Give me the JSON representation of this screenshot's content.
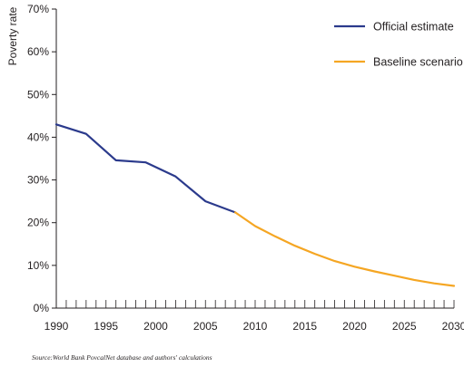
{
  "chart_data": {
    "type": "line",
    "ylabel": "Poverty rate",
    "xlabel": "",
    "xlim": [
      1990,
      2030
    ],
    "ylim": [
      0,
      70
    ],
    "x_ticks": [
      1990,
      1995,
      2000,
      2005,
      2010,
      2015,
      2020,
      2025,
      2030
    ],
    "y_ticks": [
      0,
      10,
      20,
      30,
      40,
      50,
      60,
      70
    ],
    "y_tick_labels": [
      "0%",
      "10%",
      "20%",
      "30%",
      "40%",
      "50%",
      "60%",
      "70%"
    ],
    "grid": false,
    "legend_position": "top-right",
    "series": [
      {
        "name": "Official estimate",
        "color": "#2b3a8c",
        "x": [
          1990,
          1993,
          1996,
          1999,
          2002,
          2005,
          2008
        ],
        "y": [
          43,
          40.8,
          34.6,
          34.1,
          30.8,
          25,
          22.4
        ]
      },
      {
        "name": "Baseline scenario",
        "color": "#f5a623",
        "x": [
          2008,
          2010,
          2012,
          2014,
          2016,
          2018,
          2020,
          2022,
          2024,
          2026,
          2028,
          2030
        ],
        "y": [
          22.4,
          19.2,
          16.8,
          14.6,
          12.7,
          11,
          9.7,
          8.6,
          7.6,
          6.6,
          5.8,
          5.2
        ]
      }
    ]
  },
  "source": "Source:World Bank PovcalNet database and authors' calculations"
}
